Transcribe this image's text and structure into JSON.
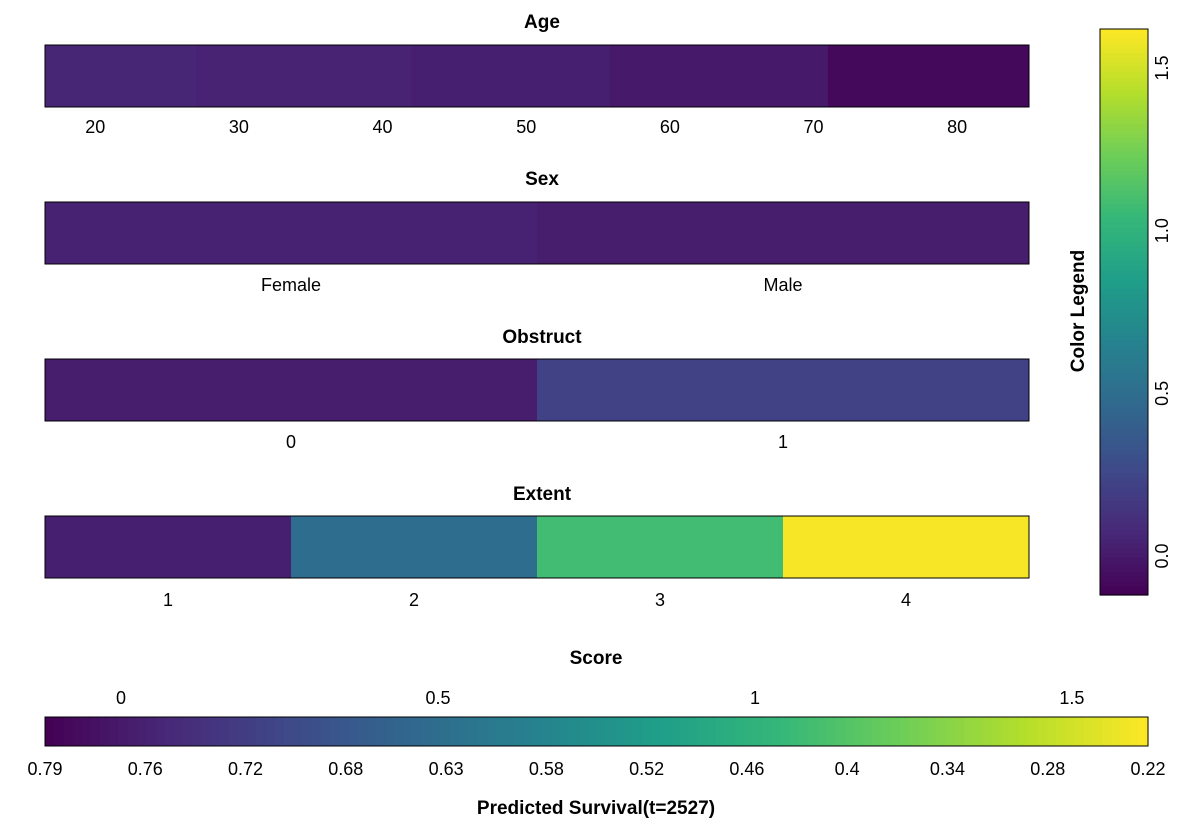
{
  "chart_data": {
    "type": "heatmap",
    "colormap": [
      "#440154",
      "#482878",
      "#3e4a89",
      "#31688e",
      "#26828e",
      "#1f9e89",
      "#35b779",
      "#6ece58",
      "#b5de2b",
      "#fde725"
    ],
    "color_scale": {
      "range": [
        -0.12,
        1.62
      ],
      "ticks": [
        0.0,
        0.5,
        1.0,
        1.5
      ],
      "tick_labels": [
        "0.0",
        "0.5",
        "1.0",
        "1.5"
      ],
      "title": "Color Legend"
    },
    "panels": [
      {
        "title": "Age",
        "axis": "continuous",
        "range": [
          16.5,
          85.0
        ],
        "ticks": [
          20,
          30,
          40,
          50,
          60,
          70,
          80
        ],
        "tick_labels": [
          "20",
          "30",
          "40",
          "50",
          "60",
          "70",
          "80"
        ],
        "segments": [
          {
            "from": 16.5,
            "to": 27.0,
            "score": 0.065
          },
          {
            "from": 27.0,
            "to": 42.0,
            "score": 0.05
          },
          {
            "from": 42.0,
            "to": 55.8,
            "score": 0.03
          },
          {
            "from": 55.8,
            "to": 71.0,
            "score": 0.0
          },
          {
            "from": 71.0,
            "to": 85.0,
            "score": -0.08
          }
        ]
      },
      {
        "title": "Sex",
        "axis": "categorical",
        "categories": [
          "Female",
          "Male"
        ],
        "scores": [
          0.04,
          0.02
        ]
      },
      {
        "title": "Obstruct",
        "axis": "categorical",
        "categories": [
          "0",
          "1"
        ],
        "scores": [
          0.02,
          0.22
        ]
      },
      {
        "title": "Extent",
        "axis": "categorical",
        "categories": [
          "1",
          "2",
          "3",
          "4"
        ],
        "scores": [
          0.03,
          0.5,
          1.08,
          1.6
        ]
      }
    ],
    "score_bar": {
      "title": "Score",
      "range": [
        -0.12,
        1.62
      ],
      "score_ticks": [
        0,
        0.5,
        1,
        1.5
      ],
      "score_tick_labels": [
        "0",
        "0.5",
        "1",
        "1.5"
      ],
      "survival_tick_labels": [
        "0.79",
        "0.76",
        "0.72",
        "0.68",
        "0.63",
        "0.58",
        "0.52",
        "0.46",
        "0.4",
        "0.34",
        "0.28",
        "0.22"
      ],
      "xlabel": "Predicted Survival(t=2527)"
    }
  }
}
